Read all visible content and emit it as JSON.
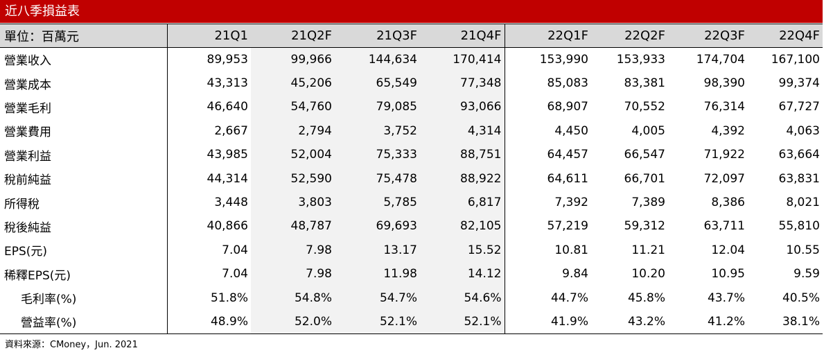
{
  "title": "近八季損益表",
  "header": {
    "unit_label": "單位：百萬元",
    "columns": [
      "21Q1",
      "21Q2F",
      "21Q3F",
      "21Q4F",
      "22Q1F",
      "22Q2F",
      "22Q3F",
      "22Q4F"
    ]
  },
  "rows": [
    {
      "label": "營業收入",
      "values": [
        "89,953",
        "99,966",
        "144,634",
        "170,414",
        "153,990",
        "153,933",
        "174,704",
        "167,100"
      ]
    },
    {
      "label": "營業成本",
      "values": [
        "43,313",
        "45,206",
        "65,549",
        "77,348",
        "85,083",
        "83,381",
        "98,390",
        "99,374"
      ]
    },
    {
      "label": "營業毛利",
      "values": [
        "46,640",
        "54,760",
        "79,085",
        "93,066",
        "68,907",
        "70,552",
        "76,314",
        "67,727"
      ]
    },
    {
      "label": "營業費用",
      "values": [
        "2,667",
        "2,794",
        "3,752",
        "4,314",
        "4,450",
        "4,005",
        "4,392",
        "4,063"
      ]
    },
    {
      "label": "營業利益",
      "values": [
        "43,985",
        "52,004",
        "75,333",
        "88,751",
        "64,457",
        "66,547",
        "71,922",
        "63,664"
      ]
    },
    {
      "label": "稅前純益",
      "values": [
        "44,314",
        "52,590",
        "75,478",
        "88,922",
        "64,611",
        "66,701",
        "72,097",
        "63,831"
      ]
    },
    {
      "label": "所得稅",
      "values": [
        "3,448",
        "3,803",
        "5,785",
        "6,817",
        "7,392",
        "7,389",
        "8,386",
        "8,021"
      ]
    },
    {
      "label": "稅後純益",
      "values": [
        "40,866",
        "48,787",
        "69,693",
        "82,105",
        "57,219",
        "59,312",
        "63,711",
        "55,810"
      ]
    },
    {
      "label": "EPS(元)",
      "values": [
        "7.04",
        "7.98",
        "13.17",
        "15.52",
        "10.81",
        "11.21",
        "12.04",
        "10.55"
      ]
    },
    {
      "label": "稀釋EPS(元)",
      "values": [
        "7.04",
        "7.98",
        "11.98",
        "14.12",
        "9.84",
        "10.20",
        "10.95",
        "9.59"
      ]
    },
    {
      "label": "毛利率(%)",
      "values": [
        "51.8%",
        "54.8%",
        "54.7%",
        "54.6%",
        "44.7%",
        "45.8%",
        "43.7%",
        "40.5%"
      ]
    },
    {
      "label": "營益率(%)",
      "values": [
        "48.9%",
        "52.0%",
        "52.1%",
        "52.1%",
        "41.9%",
        "43.2%",
        "41.2%",
        "38.1%"
      ]
    }
  ],
  "source": "資料來源：CMoney，Jun. 2021",
  "colors": {
    "title_bg": "#c00000",
    "header_bg": "#d9d9d9",
    "shade_bg": "#f2f2f2"
  }
}
